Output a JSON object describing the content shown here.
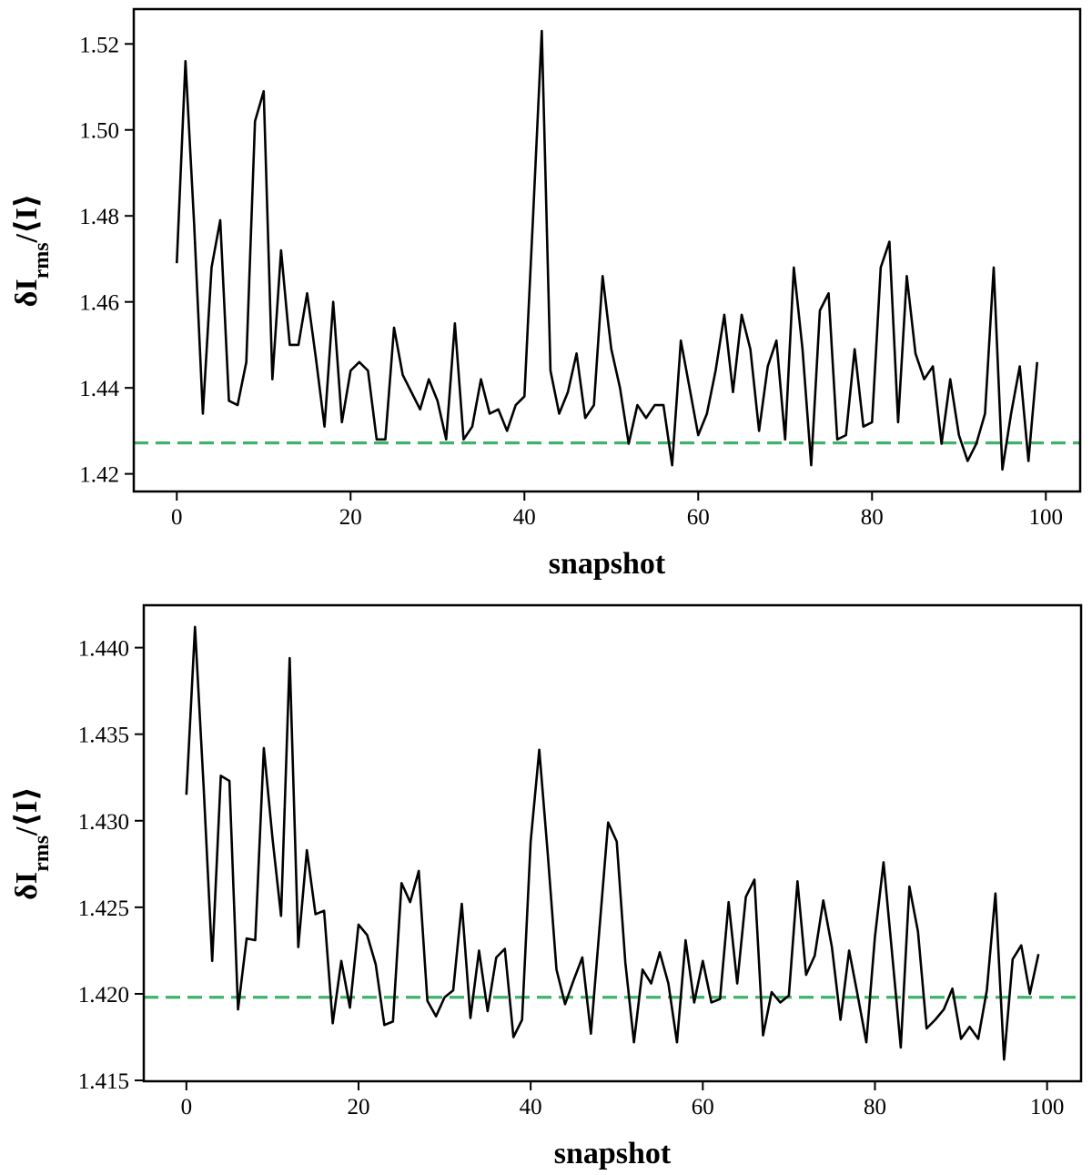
{
  "chart_data": [
    {
      "type": "line",
      "xlabel": "snapshot",
      "ylabel": [
        "δI",
        "rms",
        "/⟨I⟩"
      ],
      "x": [
        0,
        1,
        2,
        3,
        4,
        5,
        6,
        7,
        8,
        9,
        10,
        11,
        12,
        13,
        14,
        15,
        16,
        17,
        18,
        19,
        20,
        21,
        22,
        23,
        24,
        25,
        26,
        27,
        28,
        29,
        30,
        31,
        32,
        33,
        34,
        35,
        36,
        37,
        38,
        39,
        40,
        41,
        42,
        43,
        44,
        45,
        46,
        47,
        48,
        49,
        50,
        51,
        52,
        53,
        54,
        55,
        56,
        57,
        58,
        59,
        60,
        61,
        62,
        63,
        64,
        65,
        66,
        67,
        68,
        69,
        70,
        71,
        72,
        73,
        74,
        75,
        76,
        77,
        78,
        79,
        80,
        81,
        82,
        83,
        84,
        85,
        86,
        87,
        88,
        89,
        90,
        91,
        92,
        93,
        94,
        95,
        96,
        97,
        98,
        99
      ],
      "values": [
        1.469,
        1.516,
        1.478,
        1.434,
        1.468,
        1.479,
        1.437,
        1.436,
        1.446,
        1.502,
        1.509,
        1.442,
        1.472,
        1.45,
        1.45,
        1.462,
        1.447,
        1.431,
        1.46,
        1.432,
        1.444,
        1.446,
        1.444,
        1.428,
        1.428,
        1.454,
        1.443,
        1.439,
        1.435,
        1.442,
        1.437,
        1.428,
        1.455,
        1.428,
        1.431,
        1.442,
        1.434,
        1.435,
        1.43,
        1.436,
        1.438,
        1.48,
        1.523,
        1.444,
        1.434,
        1.439,
        1.448,
        1.433,
        1.436,
        1.466,
        1.449,
        1.44,
        1.427,
        1.436,
        1.433,
        1.436,
        1.436,
        1.422,
        1.451,
        1.44,
        1.429,
        1.434,
        1.444,
        1.457,
        1.439,
        1.457,
        1.449,
        1.43,
        1.445,
        1.451,
        1.428,
        1.468,
        1.449,
        1.422,
        1.458,
        1.462,
        1.428,
        1.429,
        1.449,
        1.431,
        1.432,
        1.468,
        1.474,
        1.432,
        1.466,
        1.448,
        1.442,
        1.445,
        1.427,
        1.442,
        1.429,
        1.423,
        1.427,
        1.434,
        1.468,
        1.421,
        1.434,
        1.445,
        1.423,
        1.446
      ],
      "color": "#000000",
      "hline": {
        "value": 1.4272,
        "color": "#3db36b"
      },
      "xlim": [
        -4.95,
        103.95
      ],
      "xticks": [
        0,
        20,
        40,
        60,
        80,
        100
      ],
      "ylim": [
        1.4159,
        1.5281
      ],
      "yticks": [
        1.42,
        1.44,
        1.46,
        1.48,
        {
          "value": 1.5,
          "label": "1.50"
        },
        1.52
      ]
    },
    {
      "type": "line",
      "xlabel": "snapshot",
      "ylabel": [
        "δI",
        "rms",
        "/⟨I⟩"
      ],
      "x": [
        0,
        1,
        2,
        3,
        4,
        5,
        6,
        7,
        8,
        9,
        10,
        11,
        12,
        13,
        14,
        15,
        16,
        17,
        18,
        19,
        20,
        21,
        22,
        23,
        24,
        25,
        26,
        27,
        28,
        29,
        30,
        31,
        32,
        33,
        34,
        35,
        36,
        37,
        38,
        39,
        40,
        41,
        42,
        43,
        44,
        45,
        46,
        47,
        48,
        49,
        50,
        51,
        52,
        53,
        54,
        55,
        56,
        57,
        58,
        59,
        60,
        61,
        62,
        63,
        64,
        65,
        66,
        67,
        68,
        69,
        70,
        71,
        72,
        73,
        74,
        75,
        76,
        77,
        78,
        79,
        80,
        81,
        82,
        83,
        84,
        85,
        86,
        87,
        88,
        89,
        90,
        91,
        92,
        93,
        94,
        95,
        96,
        97,
        98,
        99
      ],
      "values": [
        1.4315,
        1.4412,
        1.432,
        1.4219,
        1.4326,
        1.4323,
        1.4191,
        1.4232,
        1.4231,
        1.4342,
        1.429,
        1.4245,
        1.4394,
        1.4227,
        1.4283,
        1.4246,
        1.4248,
        1.4183,
        1.4219,
        1.4192,
        1.424,
        1.4234,
        1.4217,
        1.4182,
        1.4184,
        1.4264,
        1.4253,
        1.4271,
        1.4196,
        1.4187,
        1.4198,
        1.4202,
        1.4252,
        1.4186,
        1.4225,
        1.419,
        1.4221,
        1.4226,
        1.4175,
        1.4185,
        1.4288,
        1.4341,
        1.428,
        1.4214,
        1.4194,
        1.4208,
        1.4221,
        1.4177,
        1.4238,
        1.4299,
        1.4288,
        1.4218,
        1.4172,
        1.4214,
        1.4206,
        1.4224,
        1.4206,
        1.4172,
        1.4231,
        1.4195,
        1.4219,
        1.4195,
        1.4197,
        1.4253,
        1.4206,
        1.4256,
        1.4266,
        1.4176,
        1.4201,
        1.4195,
        1.4199,
        1.4265,
        1.4211,
        1.4222,
        1.4254,
        1.4227,
        1.4185,
        1.4225,
        1.4199,
        1.4172,
        1.4233,
        1.4276,
        1.4223,
        1.4169,
        1.4262,
        1.4236,
        1.418,
        1.4185,
        1.4191,
        1.4203,
        1.4174,
        1.4181,
        1.4174,
        1.4202,
        1.4258,
        1.4162,
        1.422,
        1.4228,
        1.42,
        1.4223
      ],
      "color": "#000000",
      "hline": {
        "value": 1.4198,
        "color": "#3db36b"
      },
      "xlim": [
        -4.95,
        103.95
      ],
      "xticks": [
        0,
        20,
        40,
        60,
        80,
        100
      ],
      "ylim": [
        1.41495,
        1.44245
      ],
      "yticks": [
        1.415,
        {
          "value": 1.42,
          "label": "1.420"
        },
        1.425,
        {
          "value": 1.43,
          "label": "1.430"
        },
        1.435,
        {
          "value": 1.44,
          "label": "1.440"
        }
      ]
    }
  ]
}
